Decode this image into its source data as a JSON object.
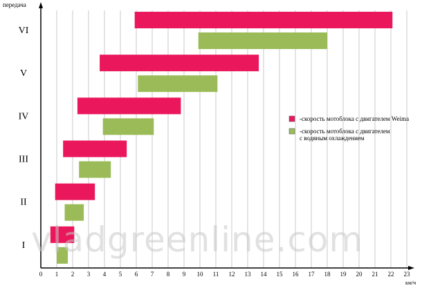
{
  "chart_data": {
    "type": "range-bar",
    "y_label": "передача",
    "x_label": "км/ч",
    "categories": [
      "I",
      "II",
      "III",
      "IV",
      "V",
      "VI"
    ],
    "series": [
      {
        "name": "-скорость мотоблока с двигателем Weima",
        "color": "#ea175c",
        "values": [
          [
            0.6,
            2.1
          ],
          [
            0.9,
            3.4
          ],
          [
            1.4,
            5.4
          ],
          [
            2.3,
            8.8
          ],
          [
            3.7,
            13.7
          ],
          [
            5.9,
            22.1
          ]
        ]
      },
      {
        "name": "-скорость мотоблока с двигателем\nс водяным охлаждением",
        "color": "#9bbb59",
        "values": [
          [
            1.0,
            1.7
          ],
          [
            1.5,
            2.7
          ],
          [
            2.4,
            4.4
          ],
          [
            3.9,
            7.1
          ],
          [
            6.1,
            11.1
          ],
          [
            9.9,
            18.0
          ]
        ]
      }
    ],
    "xlim": [
      0,
      23
    ],
    "xticks": [
      0,
      1,
      2,
      3,
      4,
      5,
      6,
      7,
      8,
      9,
      10,
      11,
      12,
      13,
      14,
      15,
      16,
      17,
      18,
      19,
      20,
      21,
      22,
      23
    ],
    "grid": true,
    "watermark": "vladgreenline.com"
  }
}
